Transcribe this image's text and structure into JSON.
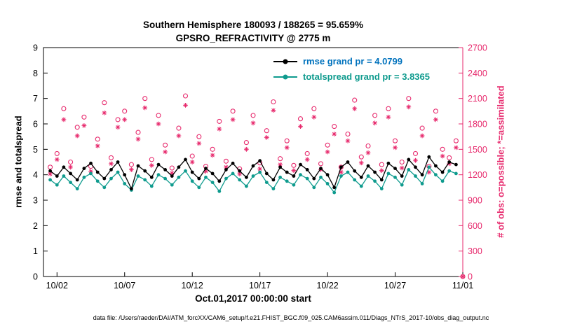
{
  "figure": {
    "title_line1": "Southern Hemisphere 180093 / 188265 = 95.659%",
    "title_line2": "GPSRO_REFRACTIVITY @ 2775 m",
    "footer": "data file: /Users/raeder/DAI/ATM_forcXX/CAM6_setup/f.e21.FHIST_BGC.f09_025.CAM6assim.011/Diags_NTrS_2017-10/obs_diag_output.nc"
  },
  "chart_data": {
    "type": "line",
    "title": "Southern Hemisphere 180093 / 188265 = 95.659%",
    "subtitle": "GPSRO_REFRACTIVITY @ 2775 m",
    "xlabel": "Oct.01,2017 00:00:00 start",
    "ylabel_left": "rmse and totalspread",
    "ylabel_right": "# of obs: o=possible; *=assimilated",
    "xlim": [
      1,
      32
    ],
    "ylim_left": [
      0,
      9
    ],
    "ylim_right": [
      0,
      2700
    ],
    "yticks_left": [
      0,
      1,
      2,
      3,
      4,
      5,
      6,
      7,
      8,
      9
    ],
    "yticks_right": [
      0,
      300,
      600,
      900,
      1200,
      1500,
      1800,
      2100,
      2400,
      2700
    ],
    "x_ticks": [
      {
        "t": 2,
        "label": "10/02"
      },
      {
        "t": 7,
        "label": "10/07"
      },
      {
        "t": 12,
        "label": "10/12"
      },
      {
        "t": 17,
        "label": "10/17"
      },
      {
        "t": 22,
        "label": "10/22"
      },
      {
        "t": 27,
        "label": "10/27"
      },
      {
        "t": 32,
        "label": "11/01"
      }
    ],
    "grid": false,
    "legend_position": "top-center-inside",
    "legend": [
      {
        "label": "rmse grand pr = 4.0799",
        "line_color": "#000000",
        "text_color": "#0072BD"
      },
      {
        "label": "totalspread grand pr = 3.8365",
        "line_color": "#0F9B8E",
        "text_color": "#0F9B8E"
      }
    ],
    "colors": {
      "axis": "#000000",
      "right_axis": "#E72A6D",
      "obs": "#E72A6D",
      "rmse": "#000000",
      "totalspread": "#0F9B8E"
    },
    "t": [
      1.5,
      2,
      2.5,
      3,
      3.5,
      4,
      4.5,
      5,
      5.5,
      6,
      6.5,
      7,
      7.5,
      8,
      8.5,
      9,
      9.5,
      10,
      10.5,
      11,
      11.5,
      12,
      12.5,
      13,
      13.5,
      14,
      14.5,
      15,
      15.5,
      16,
      16.5,
      17,
      17.5,
      18,
      18.5,
      19,
      19.5,
      20,
      20.5,
      21,
      21.5,
      22,
      22.5,
      23,
      23.5,
      24,
      24.5,
      25,
      25.5,
      26,
      26.5,
      27,
      27.5,
      28,
      28.5,
      29,
      29.5,
      30,
      30.5,
      31,
      31.5,
      32
    ],
    "series": [
      {
        "name": "possible",
        "axis": "right",
        "marker": "open-circle",
        "color": "#E72A6D",
        "values": [
          1290,
          1450,
          1980,
          1350,
          1760,
          1880,
          1300,
          1620,
          2050,
          1400,
          1850,
          1950,
          1320,
          1700,
          2100,
          1380,
          1900,
          1550,
          1280,
          1750,
          2130,
          1420,
          1650,
          1300,
          1500,
          1830,
          1360,
          1950,
          1270,
          1580,
          1900,
          1340,
          1720,
          2060,
          1390,
          1600,
          1310,
          1860,
          1450,
          1980,
          1330,
          1550,
          1770,
          1290,
          1680,
          2080,
          1410,
          1540,
          1900,
          1320,
          1980,
          1600,
          1350,
          2100,
          1450,
          1750,
          1300,
          1950,
          1500,
          1400,
          1600,
          0
        ]
      },
      {
        "name": "assimilated",
        "axis": "right",
        "marker": "asterisk",
        "color": "#E72A6D",
        "values": [
          1210,
          1380,
          1850,
          1290,
          1660,
          1780,
          1240,
          1540,
          1930,
          1330,
          1760,
          1850,
          1260,
          1620,
          1990,
          1310,
          1800,
          1470,
          1220,
          1660,
          2020,
          1350,
          1570,
          1240,
          1430,
          1740,
          1290,
          1850,
          1210,
          1500,
          1810,
          1270,
          1640,
          1960,
          1320,
          1520,
          1250,
          1770,
          1380,
          1880,
          1260,
          1470,
          1680,
          1230,
          1600,
          1980,
          1340,
          1460,
          1810,
          1250,
          1880,
          1520,
          1280,
          2000,
          1370,
          1660,
          1230,
          1850,
          1420,
          1330,
          1520,
          0
        ]
      },
      {
        "name": "totalspread",
        "axis": "left",
        "marker": "dot-line",
        "color": "#0F9B8E",
        "values": [
          3.8,
          3.6,
          3.95,
          3.7,
          3.45,
          3.9,
          4.05,
          3.75,
          3.5,
          3.85,
          4.1,
          3.65,
          3.4,
          3.95,
          3.8,
          3.55,
          4.0,
          3.85,
          3.6,
          3.9,
          4.15,
          3.75,
          3.5,
          3.9,
          3.7,
          3.35,
          3.85,
          4.05,
          3.8,
          3.55,
          3.95,
          4.1,
          3.7,
          3.45,
          3.9,
          3.75,
          3.6,
          4.0,
          3.85,
          3.5,
          3.9,
          3.65,
          3.3,
          3.95,
          4.1,
          3.8,
          3.55,
          3.95,
          3.75,
          3.45,
          4.05,
          3.9,
          3.6,
          4.2,
          3.95,
          3.65,
          4.3,
          4.0,
          3.75,
          4.15,
          4.05,
          null
        ]
      },
      {
        "name": "rmse",
        "axis": "left",
        "marker": "dot-line",
        "color": "#000000",
        "values": [
          4.15,
          3.95,
          4.3,
          4.05,
          3.8,
          4.25,
          4.45,
          4.1,
          3.85,
          4.2,
          4.5,
          4.0,
          3.45,
          4.35,
          4.15,
          3.9,
          4.4,
          4.2,
          3.95,
          4.3,
          4.6,
          4.1,
          3.85,
          4.25,
          4.05,
          3.75,
          4.2,
          4.45,
          4.15,
          3.9,
          4.35,
          4.55,
          4.05,
          3.8,
          4.3,
          4.1,
          3.95,
          4.4,
          4.2,
          3.85,
          4.25,
          4.0,
          3.5,
          4.3,
          4.5,
          4.15,
          3.9,
          4.35,
          4.1,
          3.8,
          4.45,
          4.25,
          3.95,
          4.6,
          4.3,
          4.0,
          4.7,
          4.35,
          4.1,
          4.5,
          4.4,
          null
        ]
      }
    ]
  }
}
